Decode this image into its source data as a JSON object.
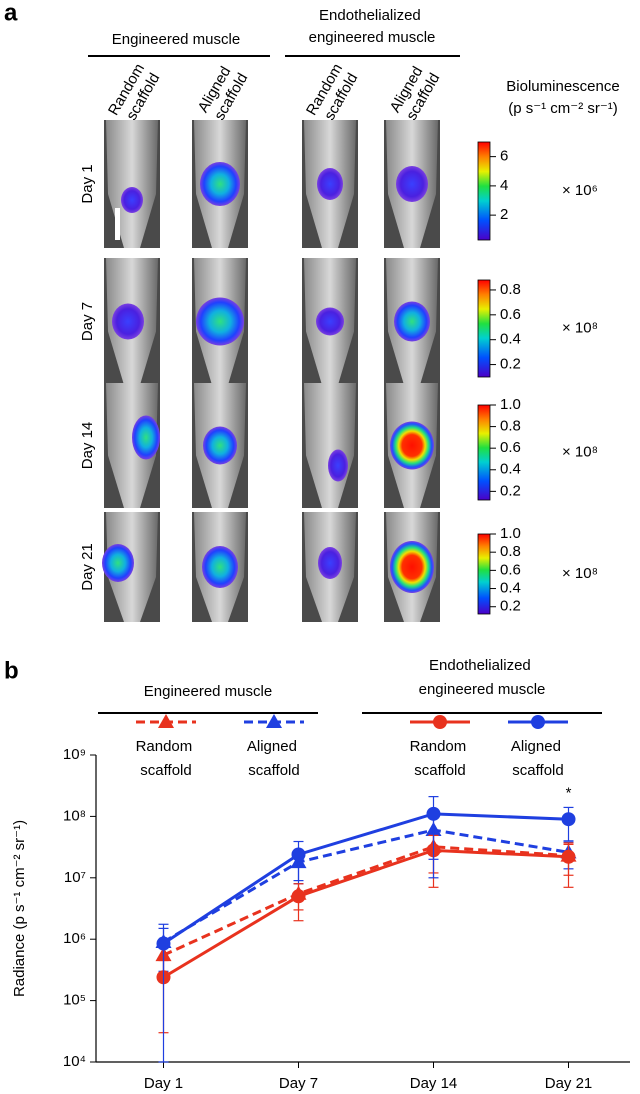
{
  "panel_a": {
    "label": "a",
    "groups": [
      "Engineered muscle",
      "Endothelialized engineered muscle"
    ],
    "columns": [
      "Random scaffold",
      "Aligned scaffold",
      "Random scaffold",
      "Aligned scaffold"
    ],
    "colorbar_title": [
      "Bioluminescence",
      "(p s⁻¹ cm⁻² sr⁻¹)"
    ],
    "rows": [
      {
        "label": "Day 1",
        "colorbar": {
          "range": [
            0.3,
            7
          ],
          "ticks": [
            2,
            4,
            6
          ],
          "multiplier": "× 10⁶"
        }
      },
      {
        "label": "Day 7",
        "colorbar": {
          "range": [
            0.1,
            0.88
          ],
          "ticks": [
            0.2,
            0.4,
            0.6,
            0.8
          ],
          "multiplier": "× 10⁸"
        }
      },
      {
        "label": "Day 14",
        "colorbar": {
          "range": [
            0.12,
            1
          ],
          "ticks": [
            0.2,
            0.4,
            0.6,
            0.8,
            {
              "value": 1,
              "label": "1.0"
            }
          ],
          "multiplier": "× 10⁸"
        }
      },
      {
        "label": "Day 21",
        "colorbar": {
          "range": [
            0.12,
            1
          ],
          "ticks": [
            0.2,
            0.4,
            0.6,
            0.8,
            {
              "value": 1,
              "label": "1.0"
            }
          ],
          "multiplier": "× 10⁸"
        }
      }
    ]
  },
  "chart_data": {
    "type": "line",
    "label": "b",
    "y_label": "Radiance (p s⁻¹ cm⁻² sr⁻¹)",
    "log_scale": true,
    "categories": [
      "Day 1",
      "Day 7",
      "Day 14",
      "Day 21"
    ],
    "ylim": [
      10000,
      1000000000
    ],
    "yticks": [
      {
        "value": 10000,
        "label": "10⁴"
      },
      {
        "value": 100000,
        "label": "10⁵"
      },
      {
        "value": 1000000,
        "label": "10⁶"
      },
      {
        "value": 10000000,
        "label": "10⁷"
      },
      {
        "value": 100000000,
        "label": "10⁸"
      },
      {
        "value": 1000000000,
        "label": "10⁹"
      }
    ],
    "legend_groups": [
      "Engineered muscle",
      "Endothelialized engineered muscle"
    ],
    "series": [
      {
        "name": "Random scaffold",
        "color": "#e8321e",
        "dashed": true,
        "marker": "triangle",
        "values": [
          550000,
          5500000,
          32000000,
          23000000
        ],
        "errors": [
          300000,
          2500000,
          20000000,
          12000000
        ]
      },
      {
        "name": "Aligned scaffold",
        "color": "#1f3fe0",
        "dashed": true,
        "marker": "triangle",
        "values": [
          900000,
          18000000,
          60000000,
          26000000
        ],
        "errors": [
          600000,
          10000000,
          40000000,
          12000000
        ]
      },
      {
        "name": "Random scaffold",
        "color": "#e8321e",
        "dashed": false,
        "marker": "circle",
        "values": [
          240000,
          5000000,
          28000000,
          22000000
        ],
        "errors": [
          210000,
          3000000,
          21000000,
          15000000
        ]
      },
      {
        "name": "Aligned scaffold",
        "color": "#1f3fe0",
        "dashed": false,
        "marker": "circle",
        "values": [
          850000,
          24000000,
          110000000,
          90000000
        ],
        "errors": [
          900000,
          15000000,
          100000000,
          50000000
        ]
      }
    ],
    "annotations": [
      {
        "text": "*"
      }
    ]
  }
}
